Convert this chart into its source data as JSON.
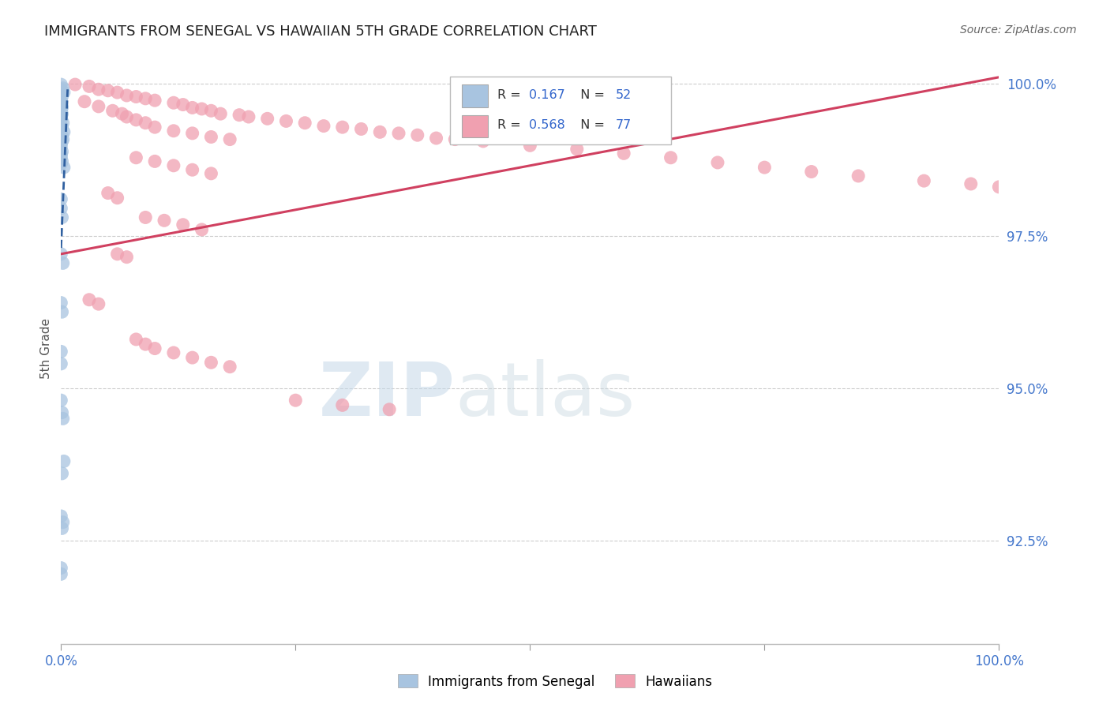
{
  "title": "IMMIGRANTS FROM SENEGAL VS HAWAIIAN 5TH GRADE CORRELATION CHART",
  "source": "Source: ZipAtlas.com",
  "ylabel": "5th Grade",
  "watermark_zip": "ZIP",
  "watermark_atlas": "atlas",
  "xlim": [
    0.0,
    1.0
  ],
  "ylim": [
    0.908,
    1.005
  ],
  "yticks": [
    0.925,
    0.95,
    0.975,
    1.0
  ],
  "ytick_labels": [
    "92.5%",
    "95.0%",
    "97.5%",
    "100.0%"
  ],
  "legend_blue_r": "0.167",
  "legend_blue_n": "52",
  "legend_pink_r": "0.568",
  "legend_pink_n": "77",
  "blue_color": "#a8c4e0",
  "pink_color": "#f0a0b0",
  "blue_line_color": "#3060a0",
  "blue_line_dash": true,
  "pink_line_color": "#d04060",
  "grid_color": "#cccccc",
  "blue_scatter_x": [
    0.0,
    0.0,
    0.0,
    0.0,
    0.002,
    0.003,
    0.001,
    0.0,
    0.0,
    0.001,
    0.0,
    0.0,
    0.001,
    0.0,
    0.0,
    0.002,
    0.0,
    0.001,
    0.0,
    0.003,
    0.001,
    0.0,
    0.002,
    0.001,
    0.0,
    0.0,
    0.001,
    0.0,
    0.0,
    0.0,
    0.001,
    0.0,
    0.003,
    0.0,
    0.0,
    0.001,
    0.0,
    0.002,
    0.0,
    0.001,
    0.0,
    0.0,
    0.0,
    0.001,
    0.002,
    0.003,
    0.001,
    0.0,
    0.002,
    0.001,
    0.0,
    0.0
  ],
  "blue_scatter_y": [
    0.9998,
    0.999,
    0.9982,
    0.9975,
    0.9992,
    0.9985,
    0.9978,
    0.997,
    0.9965,
    0.996,
    0.9958,
    0.9955,
    0.995,
    0.9945,
    0.994,
    0.9935,
    0.993,
    0.9928,
    0.9925,
    0.992,
    0.9915,
    0.9912,
    0.9908,
    0.9905,
    0.99,
    0.9895,
    0.9888,
    0.9885,
    0.9882,
    0.9878,
    0.9872,
    0.9868,
    0.9862,
    0.981,
    0.9795,
    0.978,
    0.972,
    0.9705,
    0.964,
    0.9625,
    0.956,
    0.954,
    0.948,
    0.946,
    0.945,
    0.938,
    0.936,
    0.929,
    0.928,
    0.927,
    0.9205,
    0.9195
  ],
  "pink_scatter_x": [
    0.015,
    0.03,
    0.04,
    0.05,
    0.06,
    0.07,
    0.08,
    0.09,
    0.1,
    0.12,
    0.13,
    0.14,
    0.15,
    0.16,
    0.17,
    0.19,
    0.2,
    0.22,
    0.24,
    0.26,
    0.28,
    0.3,
    0.32,
    0.34,
    0.36,
    0.38,
    0.4,
    0.42,
    0.45,
    0.5,
    0.55,
    0.6,
    0.65,
    0.7,
    0.75,
    0.8,
    0.85,
    0.92,
    0.97,
    1.0,
    0.025,
    0.04,
    0.055,
    0.065,
    0.07,
    0.08,
    0.09,
    0.1,
    0.12,
    0.14,
    0.16,
    0.18,
    0.08,
    0.1,
    0.12,
    0.14,
    0.16,
    0.05,
    0.06,
    0.09,
    0.11,
    0.13,
    0.15,
    0.06,
    0.07,
    0.03,
    0.04,
    0.08,
    0.09,
    0.1,
    0.12,
    0.14,
    0.16,
    0.18,
    0.25,
    0.3,
    0.35
  ],
  "pink_scatter_y": [
    0.9998,
    0.9995,
    0.999,
    0.9988,
    0.9985,
    0.998,
    0.9978,
    0.9975,
    0.9972,
    0.9968,
    0.9965,
    0.996,
    0.9958,
    0.9955,
    0.995,
    0.9948,
    0.9945,
    0.9942,
    0.9938,
    0.9935,
    0.993,
    0.9928,
    0.9925,
    0.992,
    0.9918,
    0.9915,
    0.991,
    0.9908,
    0.9905,
    0.9898,
    0.9892,
    0.9885,
    0.9878,
    0.987,
    0.9862,
    0.9855,
    0.9848,
    0.984,
    0.9835,
    0.983,
    0.997,
    0.9962,
    0.9955,
    0.995,
    0.9945,
    0.994,
    0.9935,
    0.9928,
    0.9922,
    0.9918,
    0.9912,
    0.9908,
    0.9878,
    0.9872,
    0.9865,
    0.9858,
    0.9852,
    0.982,
    0.9812,
    0.978,
    0.9775,
    0.9768,
    0.976,
    0.972,
    0.9715,
    0.9645,
    0.9638,
    0.958,
    0.9572,
    0.9565,
    0.9558,
    0.955,
    0.9542,
    0.9535,
    0.948,
    0.9472,
    0.9465
  ],
  "blue_trend_x": [
    0.0,
    0.007
  ],
  "blue_trend_y": [
    0.973,
    0.999
  ],
  "pink_trend_x": [
    0.0,
    1.0
  ],
  "pink_trend_y": [
    0.972,
    1.001
  ]
}
